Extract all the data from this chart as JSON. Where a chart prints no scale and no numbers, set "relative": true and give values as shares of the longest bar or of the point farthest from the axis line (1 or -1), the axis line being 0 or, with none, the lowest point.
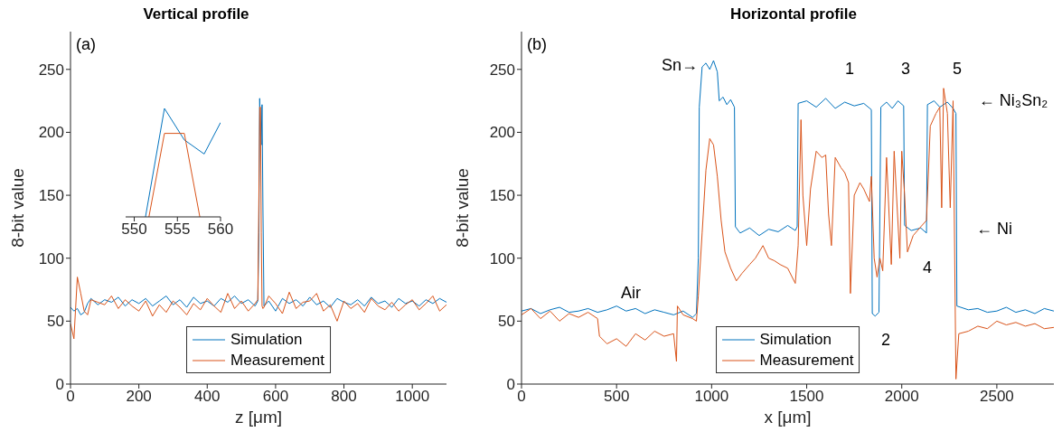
{
  "chart_data": [
    {
      "type": "line",
      "title": "Vertical profile",
      "xlabel": "z [μm]",
      "ylabel": "8-bit value",
      "xlim": [
        0,
        1100
      ],
      "xticks": [
        0,
        200,
        400,
        600,
        800,
        1000
      ],
      "ylim": [
        0,
        280
      ],
      "yticks": [
        0,
        50,
        100,
        150,
        200,
        250
      ],
      "legend": "bottom",
      "annotations": [
        "(a)"
      ],
      "x": [
        0,
        10,
        20,
        30,
        40,
        50,
        60,
        80,
        100,
        120,
        140,
        160,
        180,
        200,
        220,
        240,
        260,
        280,
        300,
        320,
        340,
        360,
        380,
        400,
        420,
        440,
        460,
        480,
        500,
        520,
        540,
        548,
        551.2,
        553.5,
        555.8,
        558.1,
        560.4,
        563,
        566,
        580,
        600,
        620,
        640,
        660,
        680,
        700,
        720,
        740,
        760,
        780,
        800,
        820,
        840,
        860,
        880,
        900,
        920,
        940,
        960,
        980,
        1000,
        1020,
        1040,
        1060,
        1080,
        1100
      ],
      "series": [
        {
          "name": "Simulation",
          "color": "#0072bd",
          "values": [
            61,
            58,
            60,
            55,
            57,
            64,
            68,
            63,
            67,
            65,
            69,
            62,
            67,
            64,
            68,
            62,
            66,
            70,
            63,
            67,
            61,
            69,
            64,
            66,
            62,
            68,
            65,
            70,
            64,
            67,
            62,
            66,
            120,
            227,
            200,
            190,
            222,
            140,
            62,
            66,
            58,
            68,
            64,
            67,
            62,
            69,
            63,
            66,
            61,
            68,
            65,
            63,
            67,
            62,
            69,
            64,
            66,
            61,
            68,
            64,
            66,
            62,
            67,
            64,
            68,
            65
          ]
        },
        {
          "name": "Measurement",
          "color": "#d95319",
          "values": [
            48,
            36,
            85,
            72,
            58,
            55,
            67,
            65,
            63,
            70,
            60,
            67,
            62,
            58,
            66,
            54,
            63,
            57,
            66,
            61,
            55,
            64,
            59,
            68,
            62,
            57,
            72,
            60,
            66,
            58,
            64,
            67,
            150,
            220,
            220,
            120,
            62,
            60,
            61,
            70,
            64,
            56,
            73,
            60,
            65,
            66,
            72,
            58,
            63,
            50,
            66,
            60,
            64,
            57,
            68,
            62,
            59,
            65,
            58,
            63,
            67,
            59,
            64,
            70,
            58,
            63
          ]
        }
      ]
    },
    {
      "type": "line",
      "relative": true,
      "xlim": [
        549,
        560
      ],
      "xticks": [
        550,
        555,
        560
      ],
      "tick_labels": "x",
      "series": [
        {
          "color": "#0072bd",
          "x": [
            551.3,
            553.5,
            555.8,
            558.1,
            560
          ],
          "values": [
            0,
            1,
            0.71,
            0.58,
            0.87
          ]
        },
        {
          "color": "#d95319",
          "x": [
            551.7,
            553.5,
            555.8,
            557.6
          ],
          "values": [
            0,
            0.77,
            0.77,
            0
          ]
        }
      ]
    },
    {
      "type": "line",
      "title": "Horizontal profile",
      "xlabel": "x [μm]",
      "ylabel": "8-bit value",
      "xlim": [
        0,
        2800
      ],
      "xticks": [
        0,
        500,
        1000,
        1500,
        2000,
        2500
      ],
      "ylim": [
        0,
        280
      ],
      "yticks": [
        0,
        50,
        100,
        150,
        200,
        250
      ],
      "legend": "bottom",
      "annotations": [
        "(b)",
        "Sn→",
        "1",
        "3",
        "5",
        "2",
        "4",
        "Air",
        "← Ni₃Sn₂",
        "← Ni"
      ],
      "series": [
        {
          "name": "Simulation",
          "color": "#0072bd",
          "x": [
            0,
            50,
            100,
            150,
            200,
            250,
            300,
            350,
            400,
            450,
            500,
            550,
            600,
            650,
            700,
            750,
            800,
            850,
            900,
            920,
            930,
            935,
            950,
            970,
            990,
            1010,
            1030,
            1040,
            1060,
            1080,
            1100,
            1120,
            1125,
            1150,
            1200,
            1250,
            1300,
            1350,
            1400,
            1440,
            1450,
            1455,
            1500,
            1550,
            1600,
            1650,
            1700,
            1750,
            1800,
            1840,
            1845,
            1860,
            1880,
            1890,
            1920,
            1950,
            1980,
            2010,
            2015,
            2050,
            2100,
            2130,
            2135,
            2170,
            2200,
            2240,
            2270,
            2285,
            2290,
            2350,
            2400,
            2450,
            2500,
            2550,
            2600,
            2650,
            2700,
            2750,
            2800
          ],
          "values": [
            58,
            60,
            56,
            59,
            61,
            57,
            58,
            60,
            57,
            59,
            62,
            58,
            60,
            56,
            59,
            57,
            55,
            58,
            53,
            56,
            100,
            220,
            252,
            255,
            250,
            257,
            248,
            225,
            228,
            222,
            226,
            220,
            125,
            120,
            124,
            118,
            123,
            121,
            126,
            122,
            125,
            223,
            225,
            220,
            227,
            219,
            224,
            221,
            223,
            218,
            56,
            54,
            57,
            220,
            224,
            219,
            225,
            221,
            126,
            122,
            124,
            120,
            222,
            225,
            220,
            224,
            219,
            215,
            62,
            59,
            60,
            57,
            58,
            61,
            57,
            59,
            56,
            60,
            58
          ]
        },
        {
          "name": "Measurement",
          "color": "#d95319",
          "x": [
            0,
            50,
            100,
            150,
            200,
            250,
            300,
            350,
            400,
            410,
            450,
            500,
            550,
            600,
            650,
            700,
            750,
            800,
            815,
            820,
            850,
            900,
            920,
            930,
            950,
            970,
            990,
            1010,
            1030,
            1050,
            1070,
            1100,
            1130,
            1160,
            1200,
            1230,
            1270,
            1300,
            1330,
            1360,
            1400,
            1440,
            1455,
            1470,
            1480,
            1500,
            1520,
            1550,
            1580,
            1600,
            1615,
            1630,
            1650,
            1680,
            1700,
            1720,
            1730,
            1750,
            1780,
            1800,
            1830,
            1840,
            1855,
            1870,
            1885,
            1900,
            1920,
            1945,
            1960,
            1990,
            2000,
            2015,
            2030,
            2060,
            2100,
            2130,
            2150,
            2180,
            2200,
            2210,
            2220,
            2240,
            2255,
            2270,
            2285,
            2300,
            2350,
            2400,
            2450,
            2500,
            2550,
            2600,
            2650,
            2700,
            2750,
            2800
          ],
          "values": [
            55,
            60,
            52,
            58,
            50,
            56,
            53,
            57,
            52,
            38,
            32,
            36,
            30,
            40,
            35,
            42,
            38,
            40,
            18,
            62,
            55,
            52,
            50,
            70,
            120,
            170,
            195,
            190,
            165,
            130,
            105,
            92,
            82,
            88,
            95,
            100,
            110,
            100,
            98,
            95,
            92,
            80,
            110,
            210,
            150,
            110,
            155,
            185,
            180,
            182,
            135,
            110,
            180,
            172,
            168,
            160,
            72,
            150,
            160,
            155,
            145,
            165,
            100,
            85,
            100,
            90,
            180,
            95,
            185,
            100,
            185,
            150,
            105,
            118,
            125,
            130,
            205,
            215,
            220,
            140,
            235,
            215,
            140,
            225,
            4,
            40,
            42,
            46,
            44,
            50,
            47,
            49,
            46,
            48,
            44,
            45
          ]
        }
      ]
    }
  ]
}
